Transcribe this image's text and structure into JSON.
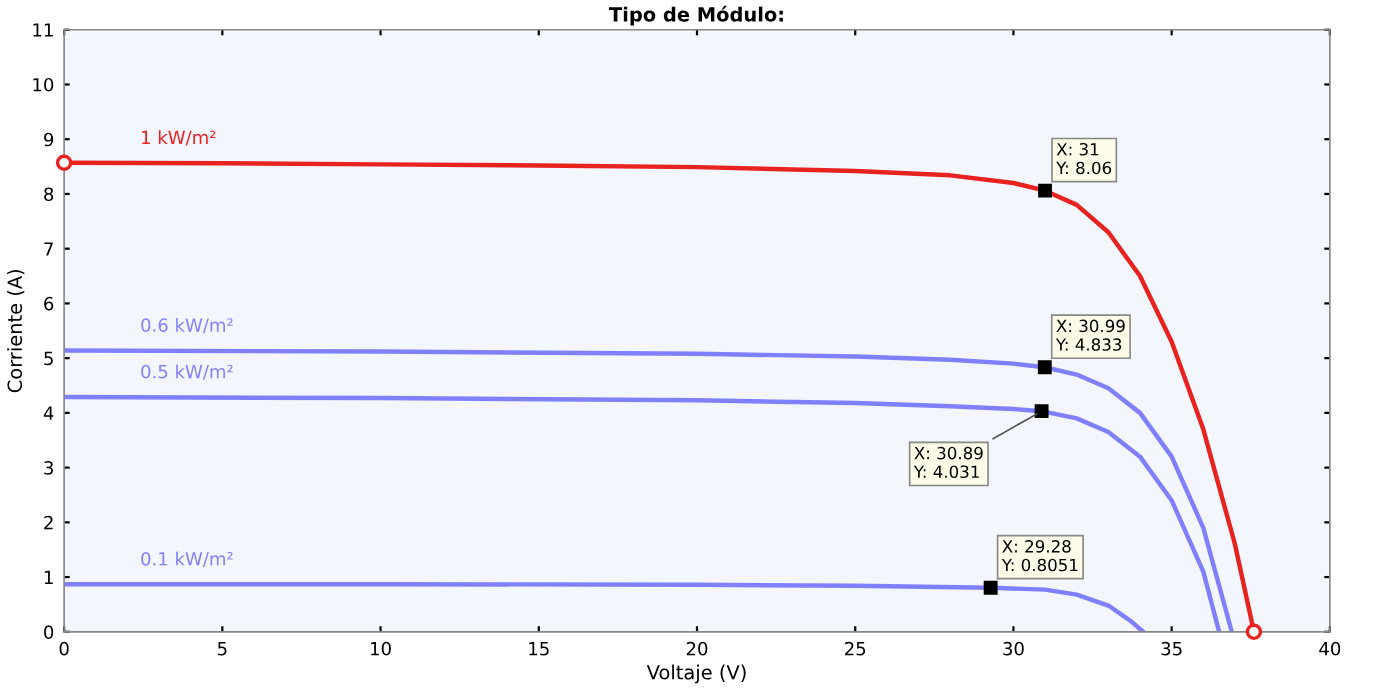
{
  "chart_data": {
    "type": "line",
    "title": "Tipo de Módulo:",
    "xlabel": "Voltaje (V)",
    "ylabel": "Corriente (A)",
    "xlim": [
      0,
      40
    ],
    "xticks": [
      0,
      5,
      10,
      15,
      20,
      25,
      30,
      35,
      40
    ],
    "ylim": [
      0,
      11
    ],
    "yticks": [
      0,
      1,
      2,
      3,
      4,
      5,
      6,
      7,
      8,
      9,
      10,
      11
    ],
    "grid": false,
    "marker": "none",
    "line_style": "solid",
    "series": [
      {
        "name": "1 kW/m²",
        "color": "#e8221f",
        "x": [
          0,
          5,
          10,
          15,
          20,
          25,
          28,
          30,
          31,
          32,
          33,
          34,
          35,
          36,
          37,
          37.6
        ],
        "values": [
          8.57,
          8.56,
          8.54,
          8.52,
          8.49,
          8.42,
          8.34,
          8.2,
          8.06,
          7.8,
          7.3,
          6.5,
          5.3,
          3.7,
          1.6,
          0
        ]
      },
      {
        "name": "0.6 kW/m²",
        "color": "#8080ff",
        "x": [
          0,
          10,
          20,
          25,
          28,
          30,
          30.99,
          32,
          33,
          34,
          35,
          36,
          36.9
        ],
        "values": [
          5.14,
          5.12,
          5.08,
          5.03,
          4.97,
          4.9,
          4.833,
          4.7,
          4.45,
          4.0,
          3.2,
          1.9,
          0
        ]
      },
      {
        "name": "0.5 kW/m²",
        "color": "#8080ff",
        "x": [
          0,
          10,
          20,
          25,
          28,
          30,
          30.89,
          32,
          33,
          34,
          35,
          36,
          36.5
        ],
        "values": [
          4.29,
          4.27,
          4.23,
          4.18,
          4.12,
          4.07,
          4.031,
          3.9,
          3.65,
          3.2,
          2.4,
          1.1,
          0
        ]
      },
      {
        "name": "0.1 kW/m²",
        "color": "#8080ff",
        "x": [
          0,
          10,
          20,
          25,
          29.28,
          31,
          32,
          33,
          33.7,
          34.1
        ],
        "values": [
          0.87,
          0.87,
          0.86,
          0.84,
          0.8051,
          0.77,
          0.68,
          0.48,
          0.2,
          0
        ]
      },
      {
        "type": "scatter",
        "marker": "circle",
        "color": "#e8221f",
        "x": [
          0,
          37.6
        ],
        "values": [
          8.57,
          0
        ]
      }
    ],
    "annotations": [
      {
        "text": "X: 31\nY: 8.06",
        "x": 31,
        "y": 8.06
      },
      {
        "text": "X: 30.99\nY: 4.833",
        "x": 30.99,
        "y": 4.833
      },
      {
        "text": "X: 30.89\nY: 4.031",
        "x": 30.89,
        "y": 4.031
      },
      {
        "text": "X: 29.28\nY: 0.8051",
        "x": 29.28,
        "y": 0.8051
      }
    ]
  }
}
